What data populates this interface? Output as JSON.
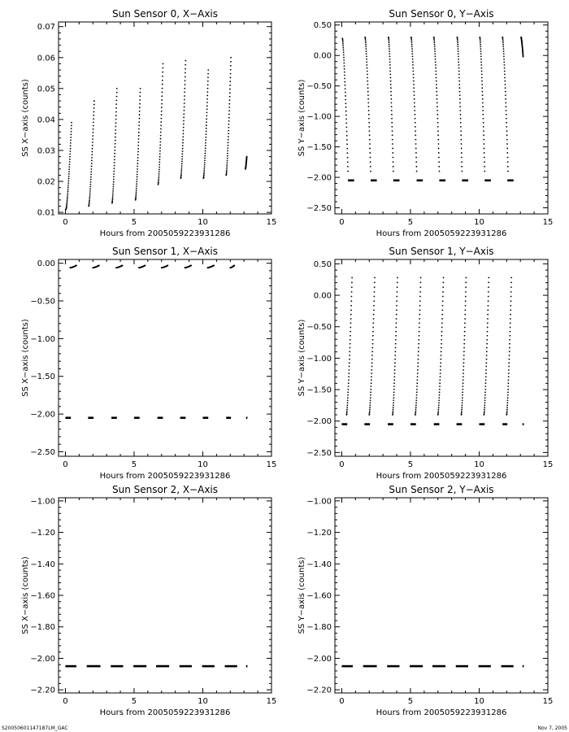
{
  "footer": {
    "left": "S20050601147187LM_GAC",
    "right": "Nov  7, 2005"
  },
  "chart_data": [
    {
      "type": "scatter",
      "title": "Sun Sensor 0, X−Axis",
      "xlabel": "Hours from 2005059223931286",
      "ylabel": "SS X−axis (counts)",
      "xlim": [
        -0.5,
        15
      ],
      "ylim": [
        0.0095,
        0.0715
      ],
      "xticks": [
        0,
        5,
        10,
        15
      ],
      "yticks": [
        0.01,
        0.02,
        0.03,
        0.04,
        0.05,
        0.06,
        0.07
      ],
      "ytick_labels": [
        "0.01",
        "0.02",
        "0.03",
        "0.04",
        "0.05",
        "0.06",
        "0.07"
      ],
      "series": [
        {
          "kind": "ramp",
          "segments": [
            {
              "x0": 0.05,
              "x1": 0.45,
              "y0": 0.011,
              "y1": 0.039
            },
            {
              "x0": 1.7,
              "x1": 2.1,
              "y0": 0.012,
              "y1": 0.046
            },
            {
              "x0": 3.4,
              "x1": 3.75,
              "y0": 0.013,
              "y1": 0.05
            },
            {
              "x0": 5.1,
              "x1": 5.45,
              "y0": 0.014,
              "y1": 0.05
            },
            {
              "x0": 6.75,
              "x1": 7.1,
              "y0": 0.019,
              "y1": 0.058
            },
            {
              "x0": 8.4,
              "x1": 8.75,
              "y0": 0.021,
              "y1": 0.059
            },
            {
              "x0": 10.05,
              "x1": 10.4,
              "y0": 0.021,
              "y1": 0.056
            },
            {
              "x0": 11.7,
              "x1": 12.05,
              "y0": 0.022,
              "y1": 0.06
            },
            {
              "x0": 13.1,
              "x1": 13.2,
              "y0": 0.024,
              "y1": 0.028
            }
          ]
        }
      ]
    },
    {
      "type": "scatter",
      "title": "Sun Sensor 0, Y−Axis",
      "xlabel": "Hours from 2005059223931286",
      "ylabel": "SS Y−axis (counts)",
      "xlim": [
        -0.5,
        15
      ],
      "ylim": [
        -2.6,
        0.55
      ],
      "xticks": [
        0,
        5,
        10,
        15
      ],
      "yticks": [
        -2.5,
        -2.0,
        -1.5,
        -1.0,
        -0.5,
        0.0,
        0.5
      ],
      "ytick_labels": [
        "−2.50",
        "−2.00",
        "−1.50",
        "−1.00",
        "−0.50",
        "0.00",
        "0.50"
      ],
      "series": [
        {
          "kind": "ramp",
          "segments": [
            {
              "x0": 0.05,
              "x1": 0.45,
              "y0": 0.28,
              "y1": -1.9
            },
            {
              "x0": 1.7,
              "x1": 2.1,
              "y0": 0.3,
              "y1": -1.9
            },
            {
              "x0": 3.4,
              "x1": 3.75,
              "y0": 0.3,
              "y1": -1.9
            },
            {
              "x0": 5.05,
              "x1": 5.45,
              "y0": 0.3,
              "y1": -1.9
            },
            {
              "x0": 6.7,
              "x1": 7.1,
              "y0": 0.3,
              "y1": -1.9
            },
            {
              "x0": 8.4,
              "x1": 8.75,
              "y0": 0.3,
              "y1": -1.9
            },
            {
              "x0": 10.05,
              "x1": 10.4,
              "y0": 0.3,
              "y1": -1.9
            },
            {
              "x0": 11.7,
              "x1": 12.1,
              "y0": 0.3,
              "y1": -1.9
            },
            {
              "x0": 13.05,
              "x1": 13.2,
              "y0": 0.3,
              "y1": -0.02
            }
          ]
        },
        {
          "kind": "flat",
          "y": -2.05,
          "segments": [
            [
              0.45,
              0.9
            ],
            [
              2.1,
              2.55
            ],
            [
              3.75,
              4.2
            ],
            [
              5.45,
              5.9
            ],
            [
              7.1,
              7.55
            ],
            [
              8.75,
              9.2
            ],
            [
              10.4,
              10.85
            ],
            [
              12.05,
              12.5
            ]
          ]
        }
      ]
    },
    {
      "type": "scatter",
      "title": "Sun Sensor 1, X−Axis",
      "xlabel": "Hours from 2005059223931286",
      "ylabel": "SS X−axis (counts)",
      "xlim": [
        -0.5,
        15
      ],
      "ylim": [
        -2.56,
        0.05
      ],
      "xticks": [
        0,
        5,
        10,
        15
      ],
      "yticks": [
        -2.5,
        -2.0,
        -1.5,
        -1.0,
        -0.5,
        0.0
      ],
      "ytick_labels": [
        "−2.50",
        "−2.00",
        "−1.50",
        "−1.00",
        "−0.50",
        "0.00"
      ],
      "series": [
        {
          "kind": "ramp",
          "segments": [
            {
              "x0": 0.35,
              "x1": 0.8,
              "y0": -0.06,
              "y1": -0.03
            },
            {
              "x0": 2.0,
              "x1": 2.45,
              "y0": -0.06,
              "y1": -0.03
            },
            {
              "x0": 3.7,
              "x1": 4.15,
              "y0": -0.06,
              "y1": -0.03
            },
            {
              "x0": 5.35,
              "x1": 5.8,
              "y0": -0.06,
              "y1": -0.03
            },
            {
              "x0": 7.0,
              "x1": 7.45,
              "y0": -0.06,
              "y1": -0.03
            },
            {
              "x0": 8.7,
              "x1": 9.15,
              "y0": -0.06,
              "y1": -0.03
            },
            {
              "x0": 10.35,
              "x1": 10.8,
              "y0": -0.06,
              "y1": -0.03
            },
            {
              "x0": 12.0,
              "x1": 12.3,
              "y0": -0.06,
              "y1": -0.03
            }
          ]
        },
        {
          "kind": "flat",
          "y": -2.05,
          "segments": [
            [
              0.0,
              0.4
            ],
            [
              1.65,
              2.05
            ],
            [
              3.35,
              3.75
            ],
            [
              5.0,
              5.4
            ],
            [
              6.7,
              7.1
            ],
            [
              8.35,
              8.75
            ],
            [
              10.0,
              10.4
            ],
            [
              11.7,
              12.05
            ],
            [
              13.15,
              13.25
            ]
          ]
        }
      ]
    },
    {
      "type": "scatter",
      "title": "Sun Sensor 1, Y−Axis",
      "xlabel": "Hours from 2005059223931286",
      "ylabel": "SS Y−axis (counts)",
      "xlim": [
        -0.5,
        15
      ],
      "ylim": [
        -2.56,
        0.57
      ],
      "xticks": [
        0,
        5,
        10,
        15
      ],
      "yticks": [
        -2.5,
        -2.0,
        -1.5,
        -1.0,
        -0.5,
        0.0,
        0.5
      ],
      "ytick_labels": [
        "−2.50",
        "−2.00",
        "−1.50",
        "−1.00",
        "−0.50",
        "0.00",
        "0.50"
      ],
      "series": [
        {
          "kind": "ramp",
          "segments": [
            {
              "x0": 0.35,
              "x1": 0.75,
              "y0": -1.9,
              "y1": 0.28
            },
            {
              "x0": 2.0,
              "x1": 2.4,
              "y0": -1.9,
              "y1": 0.28
            },
            {
              "x0": 3.7,
              "x1": 4.05,
              "y0": -1.9,
              "y1": 0.28
            },
            {
              "x0": 5.35,
              "x1": 5.75,
              "y0": -1.9,
              "y1": 0.28
            },
            {
              "x0": 7.0,
              "x1": 7.4,
              "y0": -1.9,
              "y1": 0.28
            },
            {
              "x0": 8.7,
              "x1": 9.05,
              "y0": -1.9,
              "y1": 0.28
            },
            {
              "x0": 10.35,
              "x1": 10.7,
              "y0": -1.9,
              "y1": 0.28
            },
            {
              "x0": 12.0,
              "x1": 12.35,
              "y0": -1.9,
              "y1": 0.28
            }
          ]
        },
        {
          "kind": "flat",
          "y": -2.05,
          "segments": [
            [
              0.0,
              0.4
            ],
            [
              1.65,
              2.05
            ],
            [
              3.35,
              3.75
            ],
            [
              5.0,
              5.4
            ],
            [
              6.7,
              7.1
            ],
            [
              8.35,
              8.75
            ],
            [
              10.0,
              10.4
            ],
            [
              11.7,
              12.05
            ],
            [
              13.15,
              13.25
            ]
          ]
        }
      ]
    },
    {
      "type": "scatter",
      "title": "Sun Sensor 2, X−Axis",
      "xlabel": "Hours from 2005059223931286",
      "ylabel": "SS X−axis (counts)",
      "xlim": [
        -0.5,
        15
      ],
      "ylim": [
        -2.22,
        -0.98
      ],
      "xticks": [
        0,
        5,
        10,
        15
      ],
      "yticks": [
        -2.2,
        -2.0,
        -1.8,
        -1.6,
        -1.4,
        -1.2,
        -1.0
      ],
      "ytick_labels": [
        "−2.20",
        "−2.00",
        "−1.80",
        "−1.60",
        "−1.40",
        "−1.20",
        "−1.00"
      ],
      "series": [
        {
          "kind": "flat",
          "y": -2.05,
          "segments": [
            [
              0.0,
              0.8
            ],
            [
              1.55,
              2.55
            ],
            [
              3.3,
              4.2
            ],
            [
              4.95,
              5.9
            ],
            [
              6.6,
              7.55
            ],
            [
              8.3,
              9.2
            ],
            [
              9.95,
              10.85
            ],
            [
              11.6,
              12.5
            ],
            [
              13.15,
              13.25
            ]
          ]
        }
      ]
    },
    {
      "type": "scatter",
      "title": "Sun Sensor 2, Y−Axis",
      "xlabel": "Hours from 2005059223931286",
      "ylabel": "SS Y−axis (counts)",
      "xlim": [
        -0.5,
        15
      ],
      "ylim": [
        -2.22,
        -0.98
      ],
      "xticks": [
        0,
        5,
        10,
        15
      ],
      "yticks": [
        -2.2,
        -2.0,
        -1.8,
        -1.6,
        -1.4,
        -1.2,
        -1.0
      ],
      "ytick_labels": [
        "−2.20",
        "−2.00",
        "−1.80",
        "−1.60",
        "−1.40",
        "−1.20",
        "−1.00"
      ],
      "series": [
        {
          "kind": "flat",
          "y": -2.05,
          "segments": [
            [
              0.0,
              0.8
            ],
            [
              1.55,
              2.55
            ],
            [
              3.3,
              4.2
            ],
            [
              4.95,
              5.9
            ],
            [
              6.6,
              7.55
            ],
            [
              8.3,
              9.2
            ],
            [
              9.95,
              10.85
            ],
            [
              11.6,
              12.5
            ],
            [
              13.15,
              13.25
            ]
          ]
        }
      ]
    }
  ]
}
